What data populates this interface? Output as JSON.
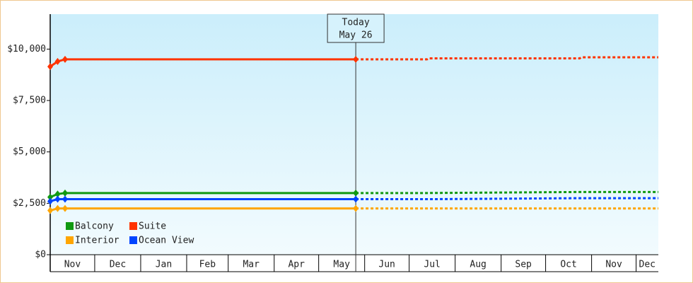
{
  "chart_data": {
    "type": "line",
    "x": [
      0,
      5,
      10,
      206
    ],
    "forecast_x": [
      206,
      254,
      255,
      357,
      358,
      410
    ],
    "xlim": [
      0,
      410
    ],
    "xticks": [
      {
        "value": 0,
        "label": "Nov"
      },
      {
        "value": 30,
        "label": "Dec"
      },
      {
        "value": 61,
        "label": "Jan"
      },
      {
        "value": 92,
        "label": "Feb"
      },
      {
        "value": 120,
        "label": "Mar"
      },
      {
        "value": 151,
        "label": "Apr"
      },
      {
        "value": 181,
        "label": "May"
      },
      {
        "value": 212,
        "label": "Jun"
      },
      {
        "value": 242,
        "label": "Jul"
      },
      {
        "value": 273,
        "label": "Aug"
      },
      {
        "value": 304,
        "label": "Sep"
      },
      {
        "value": 334,
        "label": "Oct"
      },
      {
        "value": 365,
        "label": "Nov"
      },
      {
        "value": 395,
        "label": "Dec"
      }
    ],
    "ylim": [
      0,
      11700
    ],
    "yticks": [
      {
        "value": 0,
        "label": "$0"
      },
      {
        "value": 2500,
        "label": "$2,500"
      },
      {
        "value": 5000,
        "label": "$5,000"
      },
      {
        "value": 7500,
        "label": "$7,500"
      },
      {
        "value": 10000,
        "label": "$10,000"
      }
    ],
    "annotation": {
      "lines": [
        "Today",
        "May 26"
      ],
      "x": 206
    },
    "legend": "bottom-left",
    "series": [
      {
        "name": "Balcony",
        "color": "#119911",
        "values": [
          2800,
          2950,
          3000,
          3000
        ],
        "forecast": [
          3000,
          3000,
          3000,
          3050,
          3050,
          3050
        ]
      },
      {
        "name": "Suite",
        "color": "#ff3300",
        "values": [
          9150,
          9400,
          9500,
          9500
        ],
        "forecast": [
          9500,
          9500,
          9550,
          9550,
          9600,
          9600
        ]
      },
      {
        "name": "Interior",
        "color": "#ffa500",
        "values": [
          2150,
          2250,
          2250,
          2250
        ],
        "forecast": [
          2250,
          2250,
          2250,
          2250,
          2250,
          2250
        ]
      },
      {
        "name": "Ocean View",
        "color": "#0044ff",
        "values": [
          2600,
          2700,
          2700,
          2700
        ],
        "forecast": [
          2700,
          2700,
          2700,
          2750,
          2750,
          2750
        ]
      }
    ]
  }
}
